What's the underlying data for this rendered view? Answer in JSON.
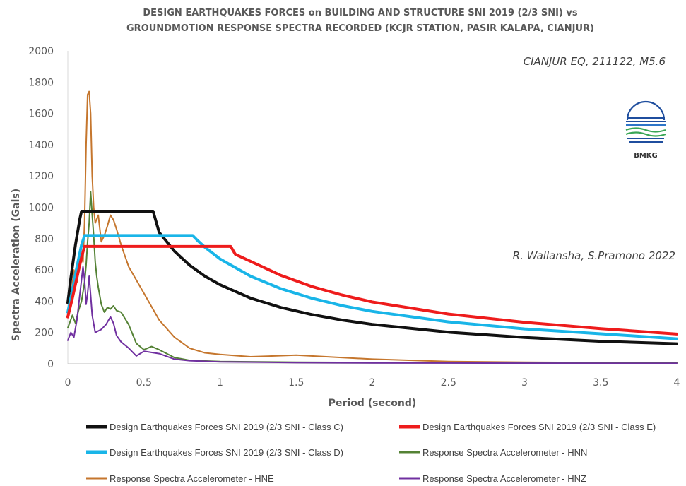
{
  "chart_data": {
    "type": "line",
    "title_lines": [
      "DESIGN EARTHQUAKES FORCES on BUILDING AND STRUCTURE SNI 2019 (2/3 SNI) vs",
      "GROUNDMOTION RESPONSE SPECTRA RECORDED (KCJR STATION, PASIR KALAPA, CIANJUR)"
    ],
    "xlabel": "Period (second)",
    "ylabel": "Spectra Acceleration (Gals)",
    "xlim": [
      0,
      4
    ],
    "ylim": [
      0,
      2000
    ],
    "x_ticks": [
      0,
      0.5,
      1,
      1.5,
      2,
      2.5,
      3,
      3.5,
      4
    ],
    "x_tick_labels": [
      "0",
      "0.5",
      "1",
      "1.5",
      "2",
      "2.5",
      "3",
      "3.5",
      "4"
    ],
    "y_ticks": [
      0,
      200,
      400,
      600,
      800,
      1000,
      1200,
      1400,
      1600,
      1800,
      2000
    ],
    "y_tick_labels": [
      "0",
      "200",
      "400",
      "600",
      "800",
      "1000",
      "1200",
      "1400",
      "1600",
      "1800",
      "2000"
    ],
    "grid": false,
    "legend_position": "bottom",
    "annotations": [
      "CIANJUR EQ, 211122, M5.6",
      "R. Wallansha, S.Pramono 2022"
    ],
    "logo_text": "BMKG",
    "series": [
      {
        "name": "Design Earthquakes Forces SNI 2019 (2/3 SNI - Class C)",
        "color": "#111111",
        "width": 4,
        "x": [
          0,
          0.02,
          0.05,
          0.08,
          0.09,
          0.2,
          0.3,
          0.4,
          0.5,
          0.56,
          0.6,
          0.7,
          0.8,
          0.9,
          1.0,
          1.2,
          1.4,
          1.6,
          1.8,
          2.0,
          2.5,
          3.0,
          3.5,
          4.0
        ],
        "y": [
          390,
          550,
          760,
          930,
          975,
          975,
          975,
          975,
          975,
          975,
          840,
          720,
          630,
          560,
          505,
          420,
          360,
          315,
          280,
          252,
          202,
          168,
          144,
          128
        ]
      },
      {
        "name": "Design Earthquakes Forces SNI 2019 (2/3 SNI - Class E)",
        "color": "#ee1c1c",
        "width": 4,
        "x": [
          0,
          0.03,
          0.06,
          0.09,
          0.11,
          0.3,
          0.5,
          0.7,
          0.9,
          1.07,
          1.1,
          1.2,
          1.4,
          1.6,
          1.8,
          2.0,
          2.5,
          3.0,
          3.5,
          4.0
        ],
        "y": [
          300,
          420,
          550,
          680,
          750,
          750,
          750,
          750,
          750,
          750,
          700,
          655,
          565,
          495,
          440,
          395,
          318,
          265,
          225,
          190
        ]
      },
      {
        "name": "Design Earthquakes Forces SNI 2019 (2/3 SNI - Class D)",
        "color": "#19b5e8",
        "width": 4,
        "x": [
          0,
          0.03,
          0.06,
          0.09,
          0.11,
          0.3,
          0.5,
          0.7,
          0.82,
          0.85,
          0.9,
          1.0,
          1.2,
          1.4,
          1.6,
          1.8,
          2.0,
          2.5,
          3.0,
          3.5,
          4.0
        ],
        "y": [
          330,
          470,
          620,
          760,
          820,
          820,
          820,
          820,
          820,
          790,
          745,
          670,
          560,
          480,
          420,
          372,
          335,
          268,
          223,
          192,
          160
        ]
      },
      {
        "name": "Response Spectra Accelerometer - HNN",
        "color": "#548235",
        "width": 2,
        "x": [
          0,
          0.03,
          0.05,
          0.07,
          0.09,
          0.11,
          0.12,
          0.13,
          0.14,
          0.15,
          0.16,
          0.17,
          0.18,
          0.19,
          0.2,
          0.22,
          0.24,
          0.26,
          0.28,
          0.3,
          0.32,
          0.35,
          0.4,
          0.45,
          0.5,
          0.55,
          0.6,
          0.7,
          0.8,
          1.0,
          1.5,
          2.0,
          3.0,
          4.0
        ],
        "y": [
          230,
          310,
          260,
          340,
          400,
          520,
          630,
          780,
          900,
          1100,
          950,
          820,
          650,
          560,
          490,
          380,
          330,
          360,
          350,
          370,
          340,
          330,
          250,
          130,
          90,
          110,
          90,
          40,
          22,
          15,
          10,
          8,
          6,
          5
        ]
      },
      {
        "name": "Response Spectra Accelerometer - HNE",
        "color": "#c5762d",
        "width": 2,
        "x": [
          0,
          0.02,
          0.04,
          0.06,
          0.08,
          0.1,
          0.11,
          0.12,
          0.13,
          0.14,
          0.15,
          0.16,
          0.17,
          0.18,
          0.2,
          0.22,
          0.24,
          0.26,
          0.28,
          0.3,
          0.32,
          0.35,
          0.4,
          0.5,
          0.6,
          0.7,
          0.8,
          0.9,
          1.0,
          1.2,
          1.5,
          2.0,
          2.5,
          3.0,
          3.5,
          4.0
        ],
        "y": [
          300,
          420,
          600,
          520,
          700,
          650,
          900,
          1400,
          1720,
          1740,
          1600,
          1200,
          1000,
          900,
          950,
          780,
          820,
          880,
          950,
          920,
          860,
          760,
          620,
          450,
          280,
          170,
          100,
          70,
          60,
          45,
          55,
          30,
          15,
          10,
          8,
          7
        ]
      },
      {
        "name": "Response Spectra Accelerometer - HNZ",
        "color": "#7030a0",
        "width": 2,
        "x": [
          0,
          0.02,
          0.04,
          0.06,
          0.08,
          0.1,
          0.11,
          0.12,
          0.13,
          0.14,
          0.15,
          0.16,
          0.18,
          0.2,
          0.22,
          0.25,
          0.28,
          0.3,
          0.32,
          0.35,
          0.4,
          0.45,
          0.5,
          0.6,
          0.7,
          0.8,
          1.0,
          1.5,
          2.0,
          3.0,
          4.0
        ],
        "y": [
          150,
          200,
          170,
          280,
          450,
          620,
          540,
          380,
          450,
          560,
          440,
          310,
          200,
          210,
          220,
          250,
          300,
          260,
          180,
          140,
          100,
          50,
          80,
          65,
          30,
          20,
          12,
          8,
          6,
          4,
          3
        ]
      }
    ]
  }
}
